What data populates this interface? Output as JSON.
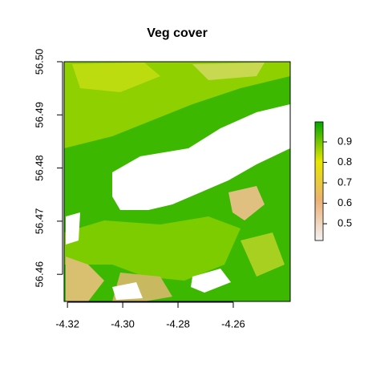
{
  "chart_data": {
    "type": "raster",
    "title": "Veg cover",
    "xlim": [
      -4.3212,
      -4.2394
    ],
    "xticks": [
      -4.32,
      {
        "value": -4.3,
        "label": "-4.30"
      },
      -4.28,
      -4.26
    ],
    "ylim": [
      56.4549,
      56.5
    ],
    "yticks": [
      56.46,
      56.47,
      56.48,
      56.49,
      {
        "value": 56.5,
        "label": "56.50"
      }
    ],
    "colorbar": {
      "lim": [
        0.418,
        0.998
      ],
      "ticks": [
        0.5,
        0.6,
        0.7,
        0.8,
        0.9
      ],
      "colors": [
        "#f2f2f2",
        "#ecb176",
        "#e6e600",
        "#00a600"
      ]
    }
  }
}
